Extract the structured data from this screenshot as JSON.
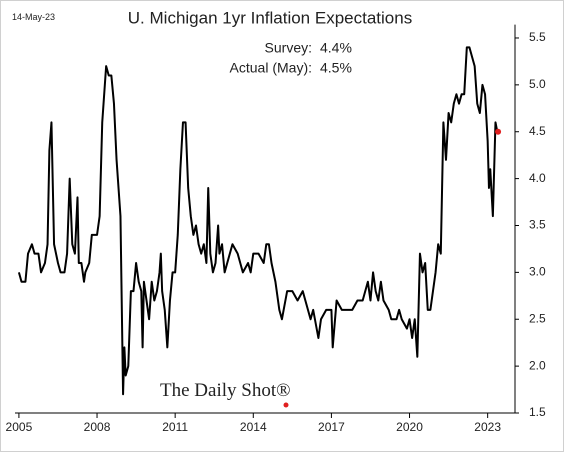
{
  "chart_data": {
    "type": "line",
    "title": "U. Michigan 1yr Inflation Expectations",
    "date_stamp": "14-May-23",
    "source_logo": "The Daily Shot®",
    "annotations": [
      {
        "label": "Survey:",
        "text": "4.4%"
      },
      {
        "label": "Actual (May):",
        "text": "4.5%"
      }
    ],
    "xlim": [
      2004.85,
      2024.05
    ],
    "xticks": [
      2005,
      2008,
      2011,
      2014,
      2017,
      2020,
      2023
    ],
    "ylim": [
      1.5,
      5.6
    ],
    "yticks": [
      1.5,
      {
        "value": 2,
        "label": "2.0"
      },
      2.5,
      {
        "value": 3,
        "label": "3.0"
      },
      3.5,
      {
        "value": 4,
        "label": "4.0"
      },
      4.5,
      {
        "value": 5,
        "label": "5.0"
      },
      5.5
    ],
    "grid": false,
    "x": [
      2005.0,
      2005.1,
      2005.25,
      2005.35,
      2005.5,
      2005.6,
      2005.75,
      2005.85,
      2006.0,
      2006.1,
      2006.17,
      2006.25,
      2006.35,
      2006.5,
      2006.6,
      2006.75,
      2006.85,
      2006.95,
      2007.05,
      2007.15,
      2007.25,
      2007.3,
      2007.4,
      2007.5,
      2007.55,
      2007.7,
      2007.8,
      2007.9,
      2008.0,
      2008.1,
      2008.2,
      2008.3,
      2008.35,
      2008.45,
      2008.55,
      2008.65,
      2008.75,
      2008.9,
      2009.0,
      2009.05,
      2009.1,
      2009.2,
      2009.3,
      2009.4,
      2009.5,
      2009.6,
      2009.7,
      2009.75,
      2009.8,
      2009.9,
      2010.0,
      2010.1,
      2010.2,
      2010.3,
      2010.4,
      2010.45,
      2010.5,
      2010.6,
      2010.7,
      2010.8,
      2010.9,
      2011.0,
      2011.1,
      2011.2,
      2011.3,
      2011.4,
      2011.5,
      2011.6,
      2011.7,
      2011.8,
      2011.9,
      2012.0,
      2012.1,
      2012.2,
      2012.27,
      2012.35,
      2012.45,
      2012.55,
      2012.65,
      2012.7,
      2012.8,
      2012.9,
      2013.0,
      2013.2,
      2013.4,
      2013.5,
      2013.6,
      2013.8,
      2013.9,
      2014.0,
      2014.2,
      2014.4,
      2014.5,
      2014.6,
      2014.7,
      2014.85,
      2015.0,
      2015.1,
      2015.3,
      2015.5,
      2015.7,
      2015.9,
      2016.0,
      2016.2,
      2016.3,
      2016.5,
      2016.6,
      2016.8,
      2017.0,
      2017.05,
      2017.2,
      2017.4,
      2017.6,
      2017.8,
      2018.0,
      2018.2,
      2018.4,
      2018.5,
      2018.6,
      2018.7,
      2018.8,
      2018.9,
      2019.0,
      2019.2,
      2019.3,
      2019.5,
      2019.6,
      2019.7,
      2019.9,
      2020.0,
      2020.1,
      2020.2,
      2020.3,
      2020.4,
      2020.5,
      2020.6,
      2020.7,
      2020.8,
      2020.9,
      2021.0,
      2021.1,
      2021.2,
      2021.3,
      2021.4,
      2021.5,
      2021.6,
      2021.7,
      2021.8,
      2021.9,
      2022.0,
      2022.1,
      2022.2,
      2022.3,
      2022.4,
      2022.5,
      2022.6,
      2022.7,
      2022.8,
      2022.9,
      2023.0,
      2023.05,
      2023.1,
      2023.2,
      2023.3,
      2023.37
    ],
    "series": [
      {
        "color": "#000000",
        "values": [
          3.0,
          2.9,
          2.9,
          3.2,
          3.3,
          3.2,
          3.2,
          3.0,
          3.1,
          3.3,
          4.3,
          4.6,
          3.3,
          3.1,
          3.0,
          3.0,
          3.2,
          4.0,
          3.3,
          3.2,
          3.8,
          3.1,
          3.1,
          2.9,
          3.0,
          3.1,
          3.4,
          3.4,
          3.4,
          3.6,
          4.6,
          5.0,
          5.2,
          5.1,
          5.1,
          4.8,
          4.2,
          3.6,
          1.7,
          2.2,
          1.9,
          2.0,
          2.8,
          2.8,
          3.1,
          2.9,
          2.8,
          2.2,
          2.9,
          2.7,
          2.5,
          2.9,
          2.7,
          2.8,
          3.0,
          3.2,
          2.8,
          2.6,
          2.2,
          2.7,
          3.0,
          3.0,
          3.4,
          4.1,
          4.6,
          4.6,
          3.9,
          3.6,
          3.4,
          3.5,
          3.3,
          3.2,
          3.3,
          3.1,
          3.9,
          3.2,
          3.0,
          3.1,
          3.5,
          3.2,
          3.3,
          3.0,
          3.1,
          3.3,
          3.2,
          3.1,
          3.0,
          3.1,
          3.0,
          3.2,
          3.2,
          3.1,
          3.3,
          3.3,
          3.1,
          2.9,
          2.6,
          2.5,
          2.8,
          2.8,
          2.7,
          2.8,
          2.7,
          2.5,
          2.6,
          2.3,
          2.5,
          2.6,
          2.6,
          2.2,
          2.7,
          2.6,
          2.6,
          2.6,
          2.7,
          2.7,
          2.9,
          2.7,
          3.0,
          2.8,
          2.7,
          2.9,
          2.7,
          2.6,
          2.5,
          2.5,
          2.6,
          2.5,
          2.4,
          2.5,
          2.3,
          2.5,
          2.1,
          3.2,
          3.0,
          3.1,
          2.6,
          2.6,
          2.8,
          3.0,
          3.3,
          3.2,
          4.6,
          4.2,
          4.7,
          4.6,
          4.8,
          4.9,
          4.8,
          4.9,
          4.9,
          5.4,
          5.4,
          5.3,
          5.2,
          4.8,
          4.7,
          5.0,
          4.9,
          4.4,
          3.9,
          4.1,
          3.6,
          4.6,
          4.5
        ]
      }
    ],
    "highlight_point": {
      "x": 2023.4,
      "y": 4.5,
      "color": "#e02020"
    }
  }
}
